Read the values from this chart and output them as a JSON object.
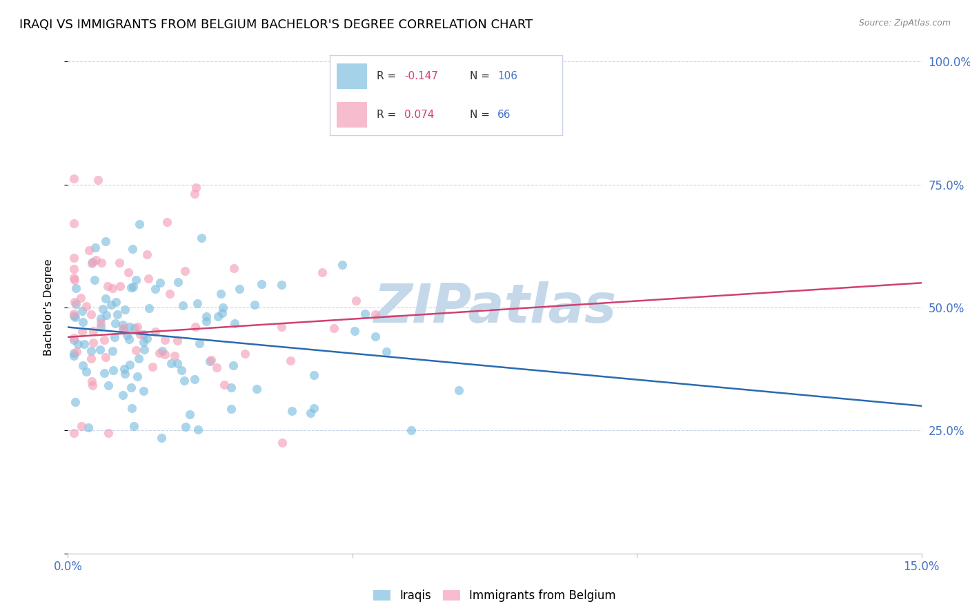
{
  "title": "IRAQI VS IMMIGRANTS FROM BELGIUM BACHELOR'S DEGREE CORRELATION CHART",
  "source": "Source: ZipAtlas.com",
  "ylabel": "Bachelor's Degree",
  "x_min": 0.0,
  "x_max": 0.15,
  "y_min": 0.0,
  "y_max": 1.0,
  "blue_color": "#7fbfdf",
  "pink_color": "#f4a0b8",
  "line_blue": "#2a6ab0",
  "line_pink": "#d04070",
  "legend_r_blue": "-0.147",
  "legend_n_blue": "106",
  "legend_r_pink": "0.074",
  "legend_n_pink": "66",
  "watermark": "ZIPatlas",
  "watermark_color": "#c5d8ea",
  "right_axis_color": "#4472c4",
  "grid_color": "#c8d4e8",
  "title_fontsize": 13,
  "label_fontsize": 11,
  "tick_fontsize": 12
}
